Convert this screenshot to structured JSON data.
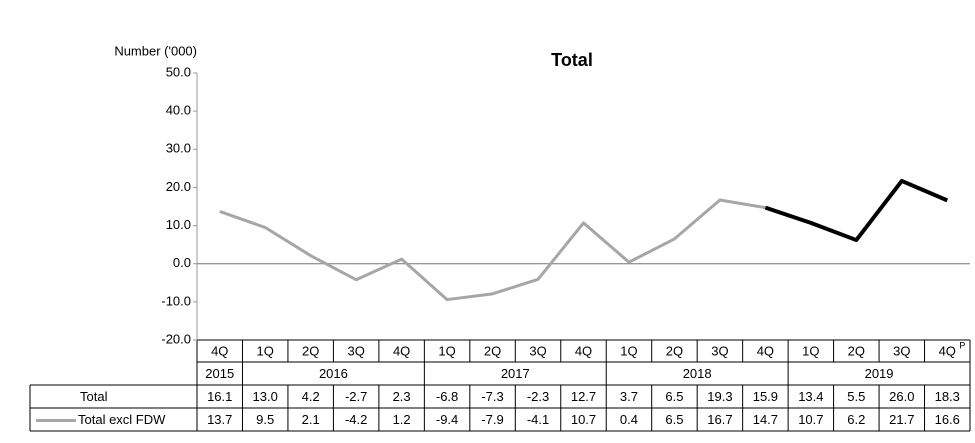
{
  "chart_data": {
    "type": "line",
    "title": "Total",
    "y_label": "Number ('000)",
    "ylim": [
      -20,
      50
    ],
    "yticks": [
      {
        "value": -20,
        "label": "-20.0"
      },
      {
        "value": -10,
        "label": "-10.0"
      },
      {
        "value": 0,
        "label": "0.0"
      },
      {
        "value": 10,
        "label": "10.0"
      },
      {
        "value": 20,
        "label": "20.0"
      },
      {
        "value": 30,
        "label": "30.0"
      },
      {
        "value": 40,
        "label": "40.0"
      },
      {
        "value": 50,
        "label": "50.0"
      }
    ],
    "categories": [
      "4Q",
      "1Q",
      "2Q",
      "3Q",
      "4Q",
      "1Q",
      "2Q",
      "3Q",
      "4Q",
      "1Q",
      "2Q",
      "3Q",
      "4Q",
      "1Q",
      "2Q",
      "3Q",
      "4Q"
    ],
    "last_category_note": "P",
    "year_groups": [
      {
        "label": "2015",
        "count": 1
      },
      {
        "label": "2016",
        "count": 4
      },
      {
        "label": "2017",
        "count": 4
      },
      {
        "label": "2018",
        "count": 4
      },
      {
        "label": "2019",
        "count": 4
      }
    ],
    "series": [
      {
        "name": "Total",
        "line": false,
        "values": [
          16.1,
          13.0,
          4.2,
          -2.7,
          2.3,
          -6.8,
          -7.3,
          -2.3,
          12.7,
          3.7,
          6.5,
          19.3,
          15.9,
          13.4,
          5.5,
          26.0,
          18.3
        ],
        "value_labels": [
          "16.1",
          "13.0",
          "4.2",
          "-2.7",
          "2.3",
          "-6.8",
          "-7.3",
          "-2.3",
          "12.7",
          "3.7",
          "6.5",
          "19.3",
          "15.9",
          "13.4",
          "5.5",
          "26.0",
          "18.3"
        ]
      },
      {
        "name": "Total excl FDW",
        "line": true,
        "color": "#a6a6a6",
        "highlight_color": "#000000",
        "highlight_from": 12,
        "values": [
          13.7,
          9.5,
          2.1,
          -4.2,
          1.2,
          -9.4,
          -7.9,
          -4.1,
          10.7,
          0.4,
          6.5,
          16.7,
          14.7,
          10.7,
          6.2,
          21.7,
          16.6
        ],
        "value_labels": [
          "13.7",
          "9.5",
          "2.1",
          "-4.2",
          "1.2",
          "-9.4",
          "-7.9",
          "-4.1",
          "10.7",
          "0.4",
          "6.5",
          "16.7",
          "14.7",
          "10.7",
          "6.2",
          "21.7",
          "16.6"
        ]
      }
    ]
  }
}
